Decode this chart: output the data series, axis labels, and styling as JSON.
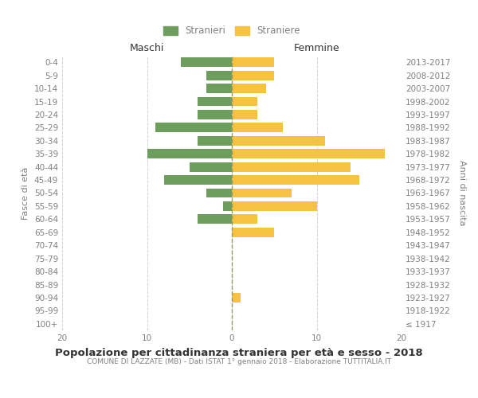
{
  "age_groups": [
    "100+",
    "95-99",
    "90-94",
    "85-89",
    "80-84",
    "75-79",
    "70-74",
    "65-69",
    "60-64",
    "55-59",
    "50-54",
    "45-49",
    "40-44",
    "35-39",
    "30-34",
    "25-29",
    "20-24",
    "15-19",
    "10-14",
    "5-9",
    "0-4"
  ],
  "birth_years": [
    "≤ 1917",
    "1918-1922",
    "1923-1927",
    "1928-1932",
    "1933-1937",
    "1938-1942",
    "1943-1947",
    "1948-1952",
    "1953-1957",
    "1958-1962",
    "1963-1967",
    "1968-1972",
    "1973-1977",
    "1978-1982",
    "1983-1987",
    "1988-1992",
    "1993-1997",
    "1998-2002",
    "2003-2007",
    "2008-2012",
    "2013-2017"
  ],
  "males": [
    0,
    0,
    0,
    0,
    0,
    0,
    0,
    0,
    4,
    1,
    3,
    8,
    5,
    10,
    4,
    9,
    4,
    4,
    3,
    3,
    6
  ],
  "females": [
    0,
    0,
    1,
    0,
    0,
    0,
    0,
    5,
    3,
    10,
    7,
    15,
    14,
    18,
    11,
    6,
    3,
    3,
    4,
    5,
    5
  ],
  "male_color": "#6d9e5e",
  "female_color": "#f5c242",
  "bar_height": 0.72,
  "xlim": 20,
  "title": "Popolazione per cittadinanza straniera per età e sesso - 2018",
  "subtitle": "COMUNE DI LAZZATE (MB) - Dati ISTAT 1° gennaio 2018 - Elaborazione TUTTITALIA.IT",
  "xlabel_left": "Maschi",
  "xlabel_right": "Femmine",
  "ylabel_left": "Fasce di età",
  "ylabel_right": "Anni di nascita",
  "legend_male": "Stranieri",
  "legend_female": "Straniere",
  "bg_color": "#ffffff",
  "grid_color": "#cccccc",
  "text_color": "#808080",
  "title_color": "#333333"
}
